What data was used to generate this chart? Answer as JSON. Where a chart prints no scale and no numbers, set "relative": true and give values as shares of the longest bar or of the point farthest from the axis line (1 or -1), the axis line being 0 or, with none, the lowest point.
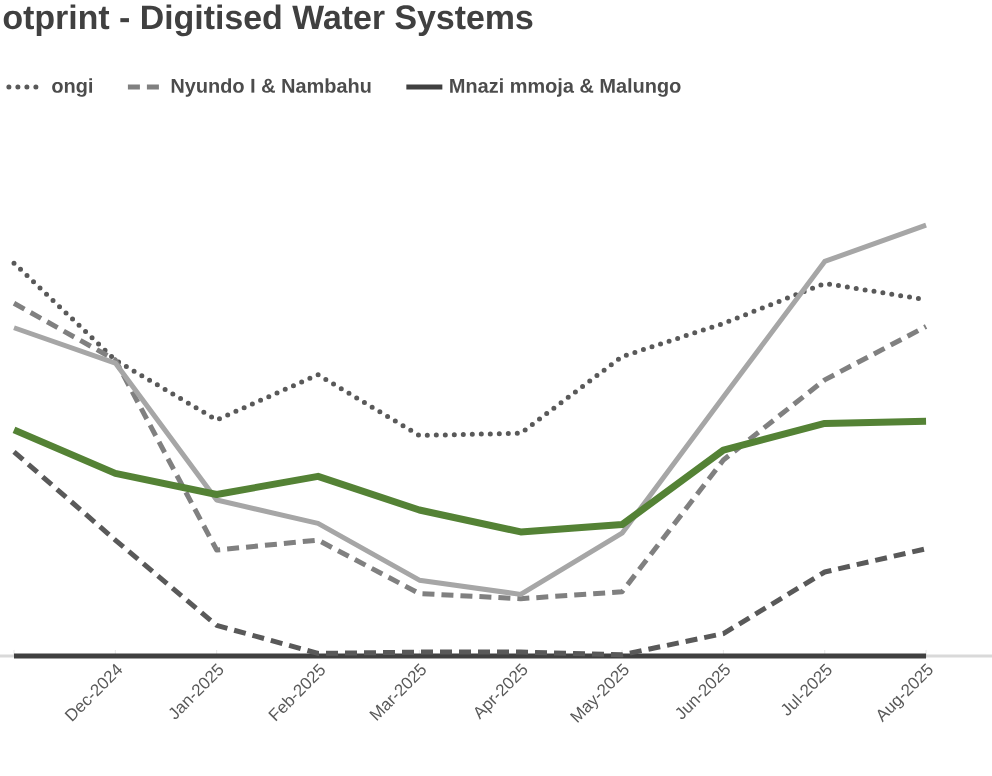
{
  "chart_data": {
    "type": "line",
    "title": "otprint - Digitised Water Systems",
    "relative": true,
    "legend": "top",
    "categories": [
      null,
      "Dec-2024",
      "Jan-2025",
      "Feb-2025",
      "Mar-2025",
      "Apr-2025",
      "May-2025",
      "Jun-2025",
      "Jul-2025",
      "Aug-2025"
    ],
    "series": [
      {
        "name": "ongi",
        "color": "#595959",
        "line_style": "dotted",
        "values": [
          0.912,
          0.687,
          0.548,
          0.653,
          0.512,
          0.517,
          0.695,
          0.772,
          0.865,
          0.827
        ]
      },
      {
        "name": "Nyundo I & Nambahu",
        "color": "#808080",
        "line_style": "dashed",
        "values": [
          0.819,
          0.687,
          0.246,
          0.269,
          0.145,
          0.133,
          0.149,
          0.455,
          0.641,
          0.765
        ]
      },
      {
        "name": "Mnazi mmoja & Malungo",
        "color": "#404040",
        "line_style": "solid",
        "values": [
          0,
          0,
          0,
          0,
          0,
          0,
          0,
          0,
          0,
          0
        ]
      },
      {
        "color": "#a6a6a6",
        "line_style": "solid",
        "values": [
          0.762,
          0.68,
          0.362,
          0.308,
          0.176,
          0.143,
          0.285,
          0.601,
          0.916,
          1.0
        ]
      },
      {
        "color": "#595959",
        "line_style": "dashed",
        "values": [
          0.474,
          0.269,
          0.071,
          0.006,
          0.009,
          0.009,
          0.003,
          0.052,
          0.195,
          0.249
        ]
      },
      {
        "color": "#548235",
        "line_style": "solid",
        "values": [
          0.525,
          0.424,
          0.375,
          0.417,
          0.339,
          0.288,
          0.305,
          0.478,
          0.54,
          0.545
        ]
      }
    ]
  }
}
